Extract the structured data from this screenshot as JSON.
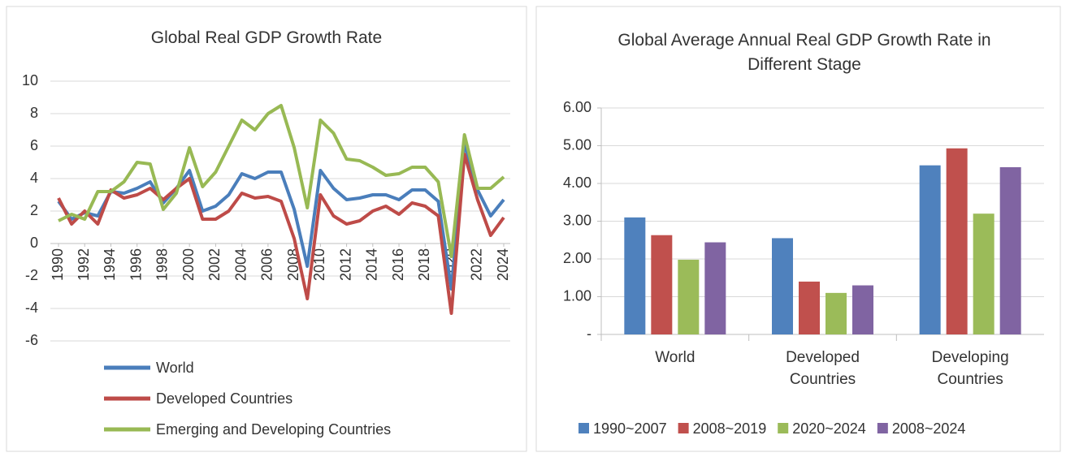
{
  "chart_data": [
    {
      "type": "line",
      "title": "Global Real GDP Growth Rate",
      "x": [
        1990,
        1991,
        1992,
        1993,
        1994,
        1995,
        1996,
        1997,
        1998,
        1999,
        2000,
        2001,
        2002,
        2003,
        2004,
        2005,
        2006,
        2007,
        2008,
        2009,
        2010,
        2011,
        2012,
        2013,
        2014,
        2015,
        2016,
        2017,
        2018,
        2019,
        2020,
        2021,
        2022,
        2023,
        2024
      ],
      "series": [
        {
          "name": "World",
          "color": "#4a7ebb",
          "values": [
            2.6,
            1.5,
            1.9,
            1.7,
            3.2,
            3.1,
            3.4,
            3.8,
            2.5,
            3.4,
            4.5,
            2.0,
            2.3,
            3.0,
            4.3,
            4.0,
            4.4,
            4.4,
            2.1,
            -1.4,
            4.5,
            3.4,
            2.7,
            2.8,
            3.0,
            3.0,
            2.7,
            3.3,
            3.3,
            2.6,
            -2.8,
            6.2,
            3.3,
            1.7,
            2.7
          ]
        },
        {
          "name": "Developed Countries",
          "color": "#be4b48",
          "values": [
            2.8,
            1.2,
            2.0,
            1.2,
            3.3,
            2.8,
            3.0,
            3.4,
            2.7,
            3.4,
            4.0,
            1.5,
            1.5,
            2.0,
            3.1,
            2.8,
            2.9,
            2.6,
            0.3,
            -3.4,
            3.0,
            1.7,
            1.2,
            1.4,
            2.0,
            2.3,
            1.8,
            2.5,
            2.3,
            1.7,
            -4.3,
            5.5,
            2.7,
            0.5,
            1.6
          ]
        },
        {
          "name": "Emerging and Developing Countries",
          "color": "#98b954",
          "values": [
            1.4,
            1.8,
            1.5,
            3.2,
            3.2,
            3.8,
            5.0,
            4.9,
            2.1,
            3.1,
            5.9,
            3.5,
            4.4,
            6.0,
            7.6,
            7.0,
            8.0,
            8.5,
            5.9,
            2.2,
            7.6,
            6.8,
            5.2,
            5.1,
            4.7,
            4.2,
            4.3,
            4.7,
            4.7,
            3.8,
            -0.8,
            6.7,
            3.4,
            3.4,
            4.1
          ]
        }
      ],
      "xlim": [
        1990,
        2024
      ],
      "xticks": [
        1990,
        1992,
        1994,
        1996,
        1998,
        2000,
        2002,
        2004,
        2006,
        2008,
        2010,
        2012,
        2014,
        2016,
        2018,
        2020,
        2022,
        2024
      ],
      "ylim": [
        -6,
        10
      ],
      "yticks": [
        -6,
        -4,
        -2,
        0,
        2,
        4,
        6,
        8,
        10
      ],
      "grid": true,
      "legend": "bottom"
    },
    {
      "type": "bar",
      "title": "Global Average Annual Real GDP Growth Rate in Different Stage",
      "categories": [
        "World",
        "Developed Countries",
        "Developing Countries"
      ],
      "series": [
        {
          "name": "1990~2007",
          "color": "#4f81bd",
          "values": [
            3.1,
            2.55,
            4.48
          ]
        },
        {
          "name": "2008~2019",
          "color": "#c0504d",
          "values": [
            2.63,
            1.4,
            4.93
          ]
        },
        {
          "name": "2020~2024",
          "color": "#9bbb59",
          "values": [
            1.98,
            1.1,
            3.2
          ]
        },
        {
          "name": "2008~2024",
          "color": "#8064a2",
          "values": [
            2.44,
            1.3,
            4.43
          ]
        }
      ],
      "ylim": [
        0,
        6
      ],
      "yticks": [
        {
          "value": 0,
          "label": "-"
        },
        {
          "value": 1,
          "label": "1.00"
        },
        {
          "value": 2,
          "label": "2.00"
        },
        {
          "value": 3,
          "label": "3.00"
        },
        {
          "value": 4,
          "label": "4.00"
        },
        {
          "value": 5,
          "label": "5.00"
        },
        {
          "value": 6,
          "label": "6.00"
        }
      ],
      "grid": true,
      "legend": "bottom"
    }
  ]
}
